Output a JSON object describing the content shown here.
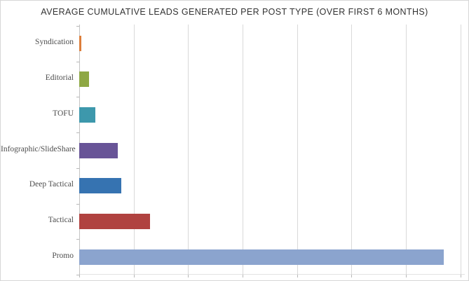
{
  "chart_data": {
    "type": "bar",
    "orientation": "horizontal",
    "title": "AVERAGE CUMULATIVE LEADS GENERATED PER POST TYPE (OVER FIRST 6 MONTHS)",
    "categories": [
      "Syndication",
      "Editorial",
      "TOFU",
      "Infographic/SlideShare",
      "Deep Tactical",
      "Tactical",
      "Promo"
    ],
    "values": [
      0.04,
      0.18,
      0.3,
      0.71,
      0.77,
      1.3,
      6.69
    ],
    "value_unit_note": "no numeric axis labels visible in screenshot; values estimated in vertical-gridline intervals",
    "bar_colors": [
      "#DD7E3B",
      "#8EA844",
      "#3D98AC",
      "#685497",
      "#3673B1",
      "#B04240",
      "#8BA4CE"
    ],
    "xlim": [
      0,
      7.08
    ],
    "gridlines_x": [
      1,
      2,
      3,
      4,
      5,
      6,
      7
    ],
    "xlabel": "",
    "ylabel": "",
    "legend": "none",
    "grid": "vertical light-gray gridlines; tick marks on both axes; no value labels"
  },
  "styles": {
    "background": "#ffffff",
    "border_color": "#d6d6d6",
    "grid_color": "#d9d9d9",
    "axis_color": "#c3c3c3",
    "tick_color": "#b8b8b8",
    "title_color": "#333333",
    "label_color": "#4d4d4d"
  }
}
